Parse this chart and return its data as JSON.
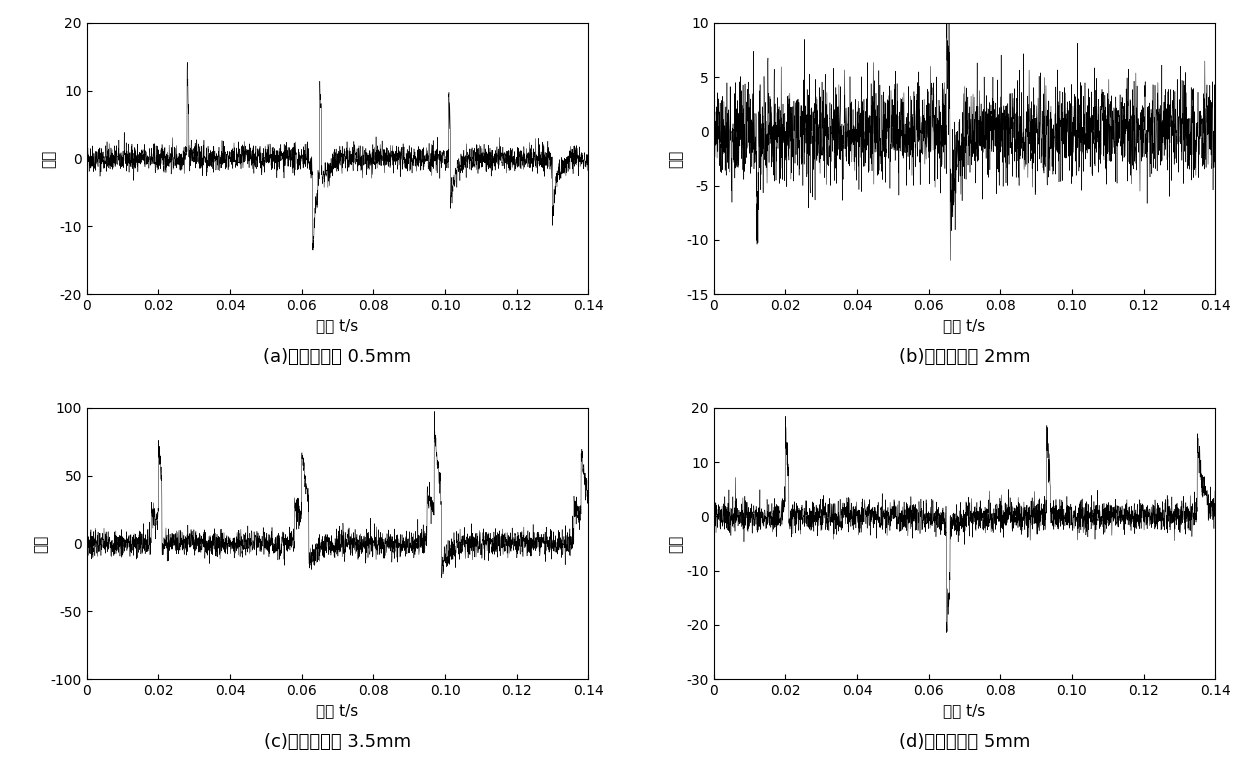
{
  "subplots": [
    {
      "label": "(a)故障直径为 0.5mm",
      "ylim": [
        -20,
        20
      ],
      "yticks": [
        -20,
        -10,
        0,
        10,
        20
      ],
      "noise_std": 1.0,
      "impulse_events": [
        {
          "t": 0.028,
          "amp": 13.0,
          "decay": 800
        },
        {
          "t": 0.0285,
          "amp": -8.5,
          "decay": 900
        },
        {
          "t": 0.063,
          "amp": -14.0,
          "decay": 700
        },
        {
          "t": 0.065,
          "amp": 15.0,
          "decay": 800
        },
        {
          "t": 0.0655,
          "amp": -10.0,
          "decay": 600
        },
        {
          "t": 0.101,
          "amp": 10.0,
          "decay": 900
        },
        {
          "t": 0.1015,
          "amp": -13.0,
          "decay": 800
        },
        {
          "t": 0.13,
          "amp": -8.0,
          "decay": 700
        }
      ],
      "seed": 42
    },
    {
      "label": "(b)故障直径为 2mm",
      "ylim": [
        -15,
        10
      ],
      "yticks": [
        -15,
        -10,
        -5,
        0,
        5,
        10
      ],
      "noise_std": 2.2,
      "impulse_events": [
        {
          "t": 0.012,
          "amp": -10.0,
          "decay": 600
        },
        {
          "t": 0.0125,
          "amp": 6.0,
          "decay": 700
        },
        {
          "t": 0.065,
          "amp": 9.0,
          "decay": 800
        },
        {
          "t": 0.066,
          "amp": -12.0,
          "decay": 600
        }
      ],
      "seed": 100
    },
    {
      "label": "(c)故障直径为 3.5mm",
      "ylim": [
        -100,
        100
      ],
      "yticks": [
        -100,
        -50,
        0,
        50,
        100
      ],
      "noise_std": 5.0,
      "impulse_events": [
        {
          "t": 0.018,
          "amp": 25.0,
          "decay": 400
        },
        {
          "t": 0.02,
          "amp": 65.0,
          "decay": 350
        },
        {
          "t": 0.021,
          "amp": -55.0,
          "decay": 400
        },
        {
          "t": 0.058,
          "amp": 30.0,
          "decay": 400
        },
        {
          "t": 0.06,
          "amp": 56.0,
          "decay": 350
        },
        {
          "t": 0.062,
          "amp": -50.0,
          "decay": 400
        },
        {
          "t": 0.095,
          "amp": 40.0,
          "decay": 400
        },
        {
          "t": 0.097,
          "amp": 68.0,
          "decay": 350
        },
        {
          "t": 0.099,
          "amp": -60.0,
          "decay": 400
        },
        {
          "t": 0.136,
          "amp": 30.0,
          "decay": 400
        },
        {
          "t": 0.138,
          "amp": 55.0,
          "decay": 350
        }
      ],
      "seed": 7
    },
    {
      "label": "(d)故障直径为 5mm",
      "ylim": [
        -30,
        20
      ],
      "yticks": [
        -30,
        -20,
        -10,
        0,
        10,
        20
      ],
      "noise_std": 1.5,
      "impulse_events": [
        {
          "t": 0.02,
          "amp": 16.0,
          "decay": 600
        },
        {
          "t": 0.021,
          "amp": -10.0,
          "decay": 700
        },
        {
          "t": 0.065,
          "amp": -22.0,
          "decay": 500
        },
        {
          "t": 0.066,
          "amp": 12.0,
          "decay": 600
        },
        {
          "t": 0.093,
          "amp": 15.0,
          "decay": 600
        },
        {
          "t": 0.094,
          "amp": -8.0,
          "decay": 700
        },
        {
          "t": 0.135,
          "amp": 15.0,
          "decay": 600
        }
      ],
      "seed": 55
    }
  ],
  "xlabel": "时间 t/s",
  "ylabel": "幅値",
  "xlim": [
    0,
    0.14
  ],
  "xticks": [
    0,
    0.02,
    0.04,
    0.06,
    0.08,
    0.1,
    0.12,
    0.14
  ],
  "fs": 20000,
  "duration": 0.14,
  "line_color": "#000000",
  "line_width": 0.35,
  "background_color": "#ffffff",
  "label_fontsize": 13,
  "tick_fontsize": 10,
  "axis_label_fontsize": 11
}
